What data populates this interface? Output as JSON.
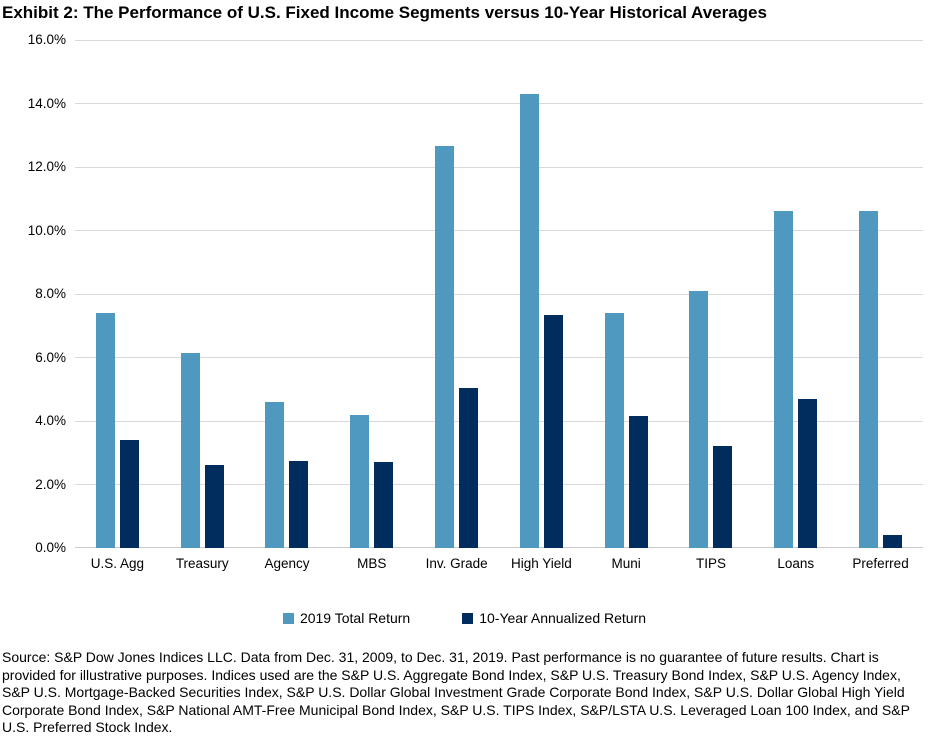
{
  "title": "Exhibit 2: The Performance of U.S. Fixed Income Segments versus 10-Year Historical Averages",
  "chart_data": {
    "type": "bar",
    "categories": [
      "U.S. Agg",
      "Treasury",
      "Agency",
      "MBS",
      "Inv. Grade",
      "High Yield",
      "Muni",
      "TIPS",
      "Loans",
      "Preferred"
    ],
    "series": [
      {
        "name": "2019 Total Return",
        "color": "#4f99c1",
        "values": [
          7.4,
          6.15,
          4.6,
          4.2,
          12.65,
          14.3,
          7.4,
          8.1,
          10.6,
          10.6
        ]
      },
      {
        "name": "10-Year Annualized Return",
        "color": "#002d5e",
        "values": [
          3.4,
          2.6,
          2.75,
          2.7,
          5.05,
          7.35,
          4.15,
          3.2,
          4.7,
          0.4
        ]
      }
    ],
    "title": "Exhibit 2: The Performance of U.S. Fixed Income Segments versus 10-Year Historical Averages",
    "xlabel": "",
    "ylabel": "",
    "ylim": [
      0,
      16
    ],
    "ytick_step": 2,
    "ytick_decimals": 1,
    "ytick_suffix": "%",
    "grid": true,
    "gridline_color": "#d9d9d9",
    "legend_position": "bottom"
  },
  "footer": {
    "text": "Source: S&P Dow Jones Indices LLC. Data from Dec. 31, 2009, to Dec. 31, 2019. Past performance is no guarantee of future results. Chart is provided for illustrative purposes. Indices used are the S&P U.S. Aggregate Bond Index, S&P U.S. Treasury Bond Index, S&P U.S. Agency Index, S&P U.S. Mortgage-Backed Securities Index, S&P U.S. Dollar Global Investment Grade Corporate Bond Index, S&P U.S. Dollar Global High Yield Corporate Bond Index, S&P National AMT-Free Municipal Bond Index, S&P U.S. TIPS Index, S&P/LSTA U.S. Leveraged Loan 100 Index, and S&P U.S. Preferred Stock Index."
  }
}
